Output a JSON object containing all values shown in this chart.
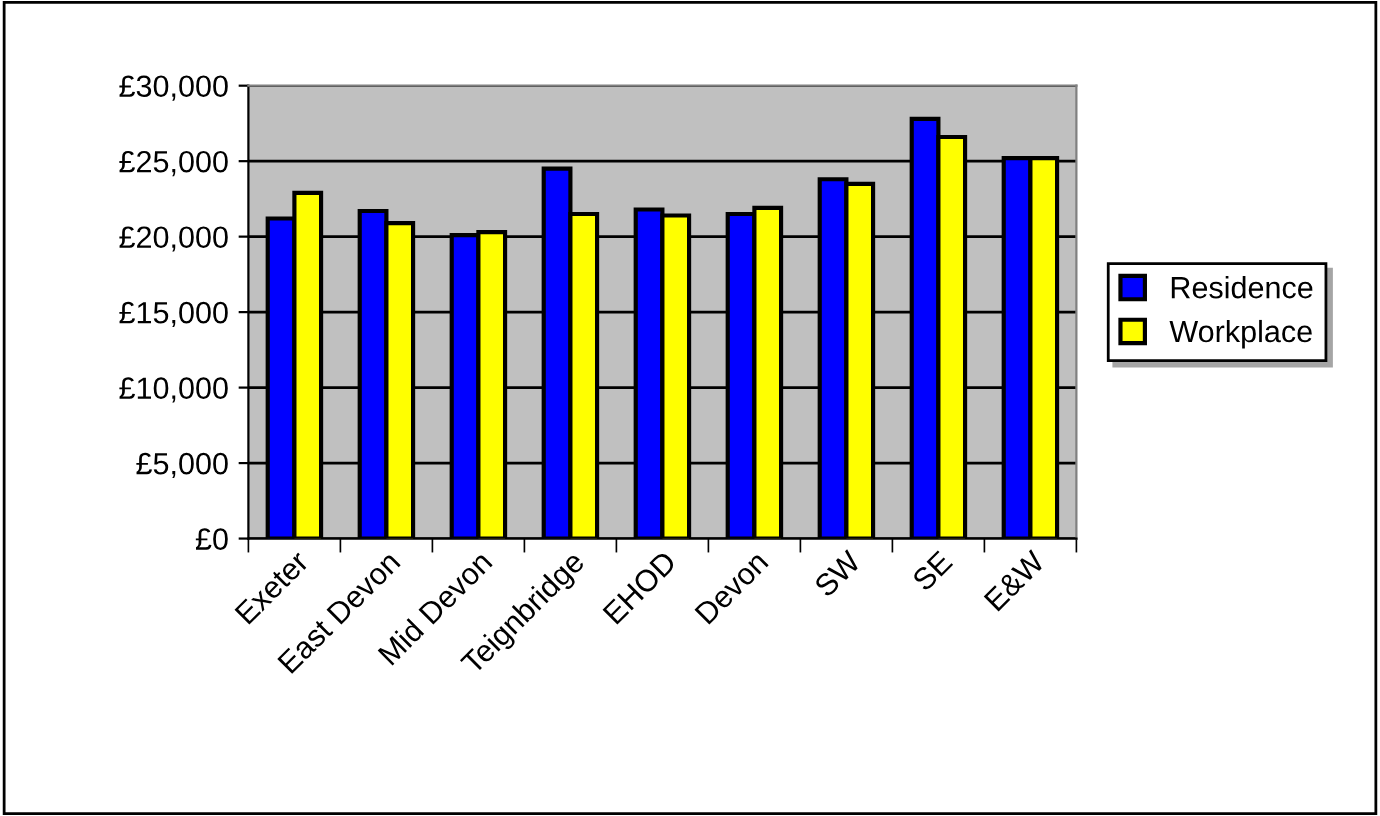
{
  "chart_data": {
    "type": "bar",
    "categories": [
      "Exeter",
      "East Devon",
      "Mid Devon",
      "Teignbridge",
      "EHOD",
      "Devon",
      "SW",
      "SE",
      "E&W"
    ],
    "series": [
      {
        "name": "Residence",
        "color": "#0000ff",
        "values": [
          21200,
          21700,
          20100,
          24500,
          21800,
          21500,
          23800,
          27800,
          25200
        ]
      },
      {
        "name": "Workplace",
        "color": "#ffff00",
        "values": [
          22900,
          20900,
          20300,
          21500,
          21400,
          21900,
          23500,
          26600,
          25200
        ]
      }
    ],
    "ylim": [
      0,
      30000
    ],
    "yticks": [
      {
        "value": 0,
        "label": "£0"
      },
      {
        "value": 5000,
        "label": "£5,000"
      },
      {
        "value": 10000,
        "label": "£10,000"
      },
      {
        "value": 15000,
        "label": "£15,000"
      },
      {
        "value": 20000,
        "label": "£20,000"
      },
      {
        "value": 25000,
        "label": "£25,000"
      },
      {
        "value": 30000,
        "label": "£30,000"
      }
    ],
    "grid": "y",
    "legend": "right"
  }
}
